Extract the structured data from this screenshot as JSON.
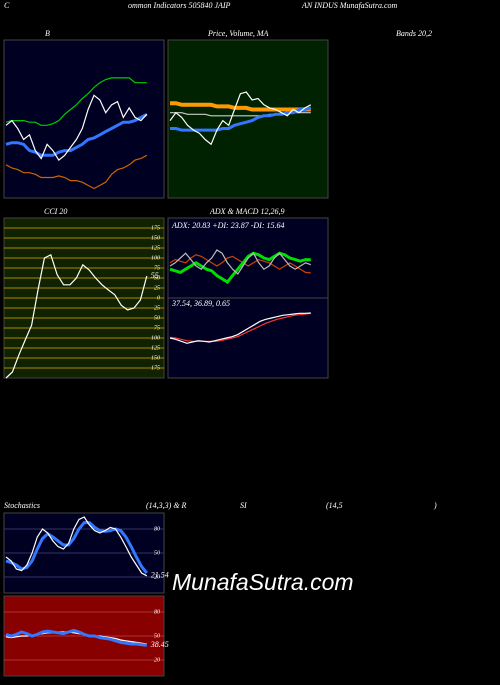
{
  "header": [
    "C",
    "ommon Indicators 505840 JAIP",
    "AN INDUS MunafaSutra.com"
  ],
  "watermark": "MunafaSutra.com",
  "labels": [
    "B",
    "Price, Volume, MA",
    "Bands 20,2",
    "CCI 20",
    "ADX  & MACD 12,26,9",
    "Stochastics",
    "(14,3,3) & R",
    "SI",
    "(14,5",
    ")"
  ],
  "chart_data": [
    {
      "type": "line",
      "background": "#000022",
      "ylim": [
        0,
        100
      ],
      "series": [
        {
          "color": "#00cc00",
          "values": [
            48,
            49,
            49,
            49,
            48,
            48,
            46,
            46,
            47,
            49,
            53,
            56,
            59,
            63,
            66,
            70,
            73,
            75,
            76,
            76,
            76,
            76,
            73,
            73,
            73
          ]
        },
        {
          "color": "#cc6600",
          "values": [
            21,
            19,
            18,
            16,
            16,
            15,
            13,
            13,
            13,
            14,
            13,
            11,
            11,
            10,
            8,
            6,
            8,
            10,
            15,
            18,
            19,
            21,
            24,
            25,
            27
          ]
        },
        {
          "color": "#3377ff",
          "width": 3,
          "values": [
            34,
            35,
            35,
            34,
            30,
            29,
            27,
            27,
            27,
            29,
            30,
            30,
            32,
            34,
            37,
            38,
            40,
            42,
            44,
            46,
            48,
            48,
            49,
            51,
            53
          ]
        },
        {
          "color": "#ffffff",
          "values": [
            46,
            49,
            44,
            37,
            40,
            30,
            25,
            34,
            30,
            24,
            27,
            32,
            37,
            44,
            56,
            65,
            62,
            54,
            59,
            61,
            51,
            57,
            51,
            49,
            53
          ]
        }
      ]
    },
    {
      "type": "line",
      "background": "#002200",
      "ylim": [
        0,
        100
      ],
      "series": [
        {
          "color": "#ff9900",
          "width": 4,
          "values": [
            60,
            60,
            59,
            59,
            59,
            59,
            59,
            59,
            58,
            58,
            58,
            57,
            57,
            57,
            56,
            56,
            56,
            56,
            56,
            56,
            56,
            56,
            56,
            56,
            56
          ]
        },
        {
          "color": "#cccccc",
          "values": [
            54,
            54,
            54,
            53,
            53,
            53,
            53,
            52,
            52,
            52,
            52,
            52,
            52,
            52,
            52,
            52,
            52,
            53,
            53,
            53,
            53,
            54,
            54,
            54,
            54
          ]
        },
        {
          "color": "#3377ff",
          "width": 3,
          "values": [
            44,
            44,
            43,
            43,
            43,
            43,
            43,
            43,
            43,
            44,
            44,
            46,
            47,
            48,
            49,
            51,
            52,
            52,
            53,
            53,
            54,
            54,
            56,
            56,
            57
          ]
        },
        {
          "color": "#ffffff",
          "values": [
            49,
            54,
            51,
            46,
            43,
            41,
            37,
            34,
            43,
            49,
            46,
            56,
            66,
            67,
            62,
            63,
            59,
            57,
            56,
            54,
            52,
            56,
            54,
            57,
            59
          ]
        }
      ]
    },
    {
      "type": "line",
      "title": "CCI 20",
      "background": "#112200",
      "grid_color": "#aa8800",
      "ylim": [
        -200,
        200
      ],
      "yticks": [
        175,
        150,
        125,
        100,
        75,
        50,
        25,
        0,
        {
          "value": -25,
          "label": "25"
        },
        {
          "value": -50,
          "label": "50"
        },
        {
          "value": -75,
          "label": "75"
        },
        {
          "value": -100,
          "label": "100"
        },
        {
          "value": -125,
          "label": "125"
        },
        {
          "value": -150,
          "label": "150"
        },
        {
          "value": -175,
          "label": "175"
        }
      ],
      "series": [
        {
          "color": "#ffffff",
          "values": [
            -200,
            -185,
            -143,
            -105,
            -68,
            20,
            100,
            108,
            58,
            33,
            33,
            50,
            83,
            70,
            50,
            33,
            20,
            8,
            -18,
            -30,
            -25,
            -5,
            55
          ]
        }
      ]
    },
    {
      "type": "line",
      "title": "ADX: 20.83 +DI: 23.87 -DI: 15.64",
      "background": "#000022",
      "ylim": [
        0,
        50
      ],
      "series": [
        {
          "color": "#cc4400",
          "values": [
            22,
            24,
            23,
            22,
            25,
            27,
            26,
            24,
            22,
            20,
            22,
            25,
            26,
            24,
            22,
            20,
            22,
            24,
            23,
            22,
            20,
            18,
            20,
            22,
            20,
            18,
            16,
            15.64
          ]
        },
        {
          "color": "#00dd00",
          "width": 3,
          "values": [
            18,
            17,
            16,
            18,
            20,
            22,
            20,
            18,
            17,
            14,
            12,
            10,
            14,
            18,
            22,
            26,
            28,
            27,
            25,
            24,
            26,
            28,
            27,
            25,
            24,
            23,
            24,
            23.87
          ]
        },
        {
          "color": "#bbbbbb",
          "values": [
            20,
            22,
            25,
            28,
            24,
            20,
            18,
            22,
            25,
            30,
            28,
            22,
            18,
            15,
            20,
            25,
            28,
            22,
            18,
            20,
            25,
            28,
            24,
            20,
            18,
            20,
            22,
            20.83
          ]
        }
      ]
    },
    {
      "type": "line",
      "title": "37.54, 36.89, 0.65",
      "background": "#000022",
      "ylim": [
        -60,
        60
      ],
      "series": [
        {
          "color": "#ff3333",
          "values": [
            1,
            0,
            -2,
            -4,
            -5,
            -5,
            -5,
            -5,
            -5,
            -4,
            -2,
            0,
            2,
            6,
            10,
            14,
            18,
            22,
            25,
            28,
            30,
            32,
            34,
            35,
            36,
            36.89
          ]
        },
        {
          "color": "#ffffff",
          "values": [
            0,
            -2,
            -5,
            -8,
            -6,
            -4,
            -5,
            -6,
            -4,
            -2,
            0,
            2,
            5,
            10,
            15,
            20,
            25,
            28,
            30,
            32,
            34,
            35,
            36,
            37,
            37,
            37.54
          ]
        }
      ]
    },
    {
      "type": "line",
      "background": "#000022",
      "ylim": [
        0,
        100
      ],
      "yticks": [
        80,
        50,
        20
      ],
      "series": [
        {
          "color": "#3377ff",
          "width": 3,
          "values": [
            40,
            38,
            35,
            30,
            32,
            40,
            55,
            68,
            74,
            70,
            65,
            60,
            60,
            68,
            80,
            88,
            88,
            82,
            78,
            77,
            78,
            80,
            78,
            70,
            58,
            45,
            33,
            25
          ]
        },
        {
          "color": "#ffffff",
          "values": [
            45,
            40,
            30,
            28,
            35,
            50,
            70,
            80,
            75,
            65,
            58,
            55,
            62,
            80,
            92,
            95,
            85,
            78,
            75,
            78,
            82,
            80,
            70,
            58,
            45,
            35,
            25,
            21.54
          ]
        }
      ]
    },
    {
      "type": "line",
      "background": "#880000",
      "grid_color": "#aa3333",
      "ylim": [
        0,
        100
      ],
      "yticks": [
        80,
        50,
        20
      ],
      "series": [
        {
          "color": "#ffffff",
          "values": [
            49,
            48,
            49,
            50,
            50,
            51,
            52,
            53,
            54,
            54,
            55,
            55,
            55,
            54,
            53,
            52,
            51,
            50,
            50,
            49,
            48,
            47,
            45,
            44,
            43,
            42,
            41,
            40
          ]
        },
        {
          "color": "#3377ff",
          "width": 3,
          "values": [
            52,
            50,
            52,
            55,
            53,
            50,
            52,
            55,
            56,
            55,
            54,
            53,
            55,
            57,
            55,
            52,
            50,
            50,
            48,
            47,
            46,
            44,
            42,
            41,
            40,
            40,
            39,
            38.45
          ]
        }
      ]
    }
  ]
}
